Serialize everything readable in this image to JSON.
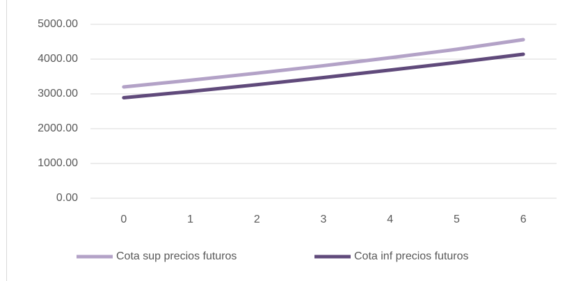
{
  "chart_data": {
    "type": "line",
    "categories": [
      "0",
      "1",
      "2",
      "3",
      "4",
      "5",
      "6"
    ],
    "series": [
      {
        "name": "Cota sup precios futuros",
        "color": "#b3a2c7",
        "values": [
          3200,
          3392,
          3596,
          3811,
          4040,
          4282,
          4560
        ]
      },
      {
        "name": "Cota inf precios futuros",
        "color": "#604a7b",
        "values": [
          2890,
          3070,
          3265,
          3470,
          3685,
          3905,
          4140
        ]
      }
    ],
    "ylim": [
      0,
      5000
    ],
    "yticks": [
      {
        "value": 0,
        "label": "0.00"
      },
      {
        "value": 1000,
        "label": "1000.00"
      },
      {
        "value": 2000,
        "label": "2000.00"
      },
      {
        "value": 3000,
        "label": "3000.00"
      },
      {
        "value": 4000,
        "label": "4000.00"
      },
      {
        "value": 5000,
        "label": "5000.00"
      }
    ],
    "grid": true,
    "legend": "bottom"
  }
}
